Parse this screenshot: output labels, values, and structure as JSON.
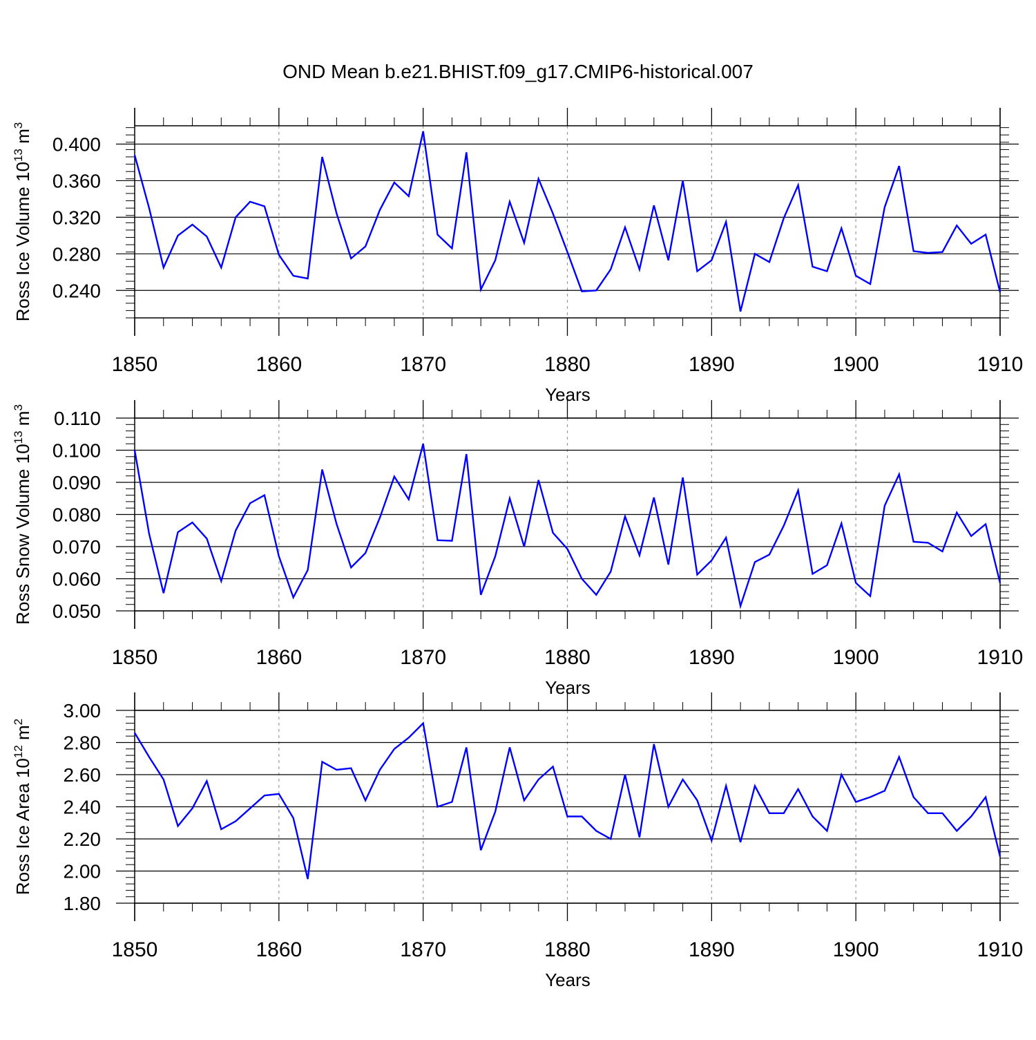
{
  "figure": {
    "title": "OND Mean b.e21.BHIST.f09_g17.CMIP6-historical.007"
  },
  "chart_data": [
    {
      "type": "line",
      "ylabel": "Ross Ice Volume 10",
      "ylabel_exp": "13",
      "ylabel_unit": "m",
      "ylabel_unit_exp": "3",
      "xlabel": "Years",
      "xlim": [
        1850,
        1910
      ],
      "ylim": [
        0.21,
        0.42
      ],
      "yticks": [
        0.24,
        0.28,
        0.32,
        0.36,
        0.4
      ],
      "ytick_labels": [
        "0.240",
        "0.280",
        "0.320",
        "0.360",
        "0.400"
      ],
      "xticks": [
        1850,
        1860,
        1870,
        1880,
        1890,
        1900,
        1910
      ],
      "xtick_labels": [
        "1850",
        "1860",
        "1870",
        "1880",
        "1890",
        "1900",
        "1910"
      ],
      "grid_x": [
        1860,
        1870,
        1880,
        1890,
        1900
      ],
      "color": "#0000ff",
      "x": [
        1850,
        1851,
        1852,
        1853,
        1854,
        1855,
        1856,
        1857,
        1858,
        1859,
        1860,
        1861,
        1862,
        1863,
        1864,
        1865,
        1866,
        1867,
        1868,
        1869,
        1870,
        1871,
        1872,
        1873,
        1874,
        1875,
        1876,
        1877,
        1878,
        1879,
        1880,
        1881,
        1882,
        1883,
        1884,
        1885,
        1886,
        1887,
        1888,
        1889,
        1890,
        1891,
        1892,
        1893,
        1894,
        1895,
        1896,
        1897,
        1898,
        1899,
        1900,
        1901,
        1902,
        1903,
        1904,
        1905,
        1906,
        1907,
        1908,
        1909,
        1910
      ],
      "values": [
        0.388,
        0.33,
        0.265,
        0.3,
        0.312,
        0.299,
        0.265,
        0.32,
        0.337,
        0.332,
        0.279,
        0.256,
        0.253,
        0.386,
        0.324,
        0.275,
        0.288,
        0.328,
        0.358,
        0.343,
        0.414,
        0.301,
        0.286,
        0.391,
        0.241,
        0.273,
        0.337,
        0.292,
        0.362,
        0.324,
        0.282,
        0.239,
        0.24,
        0.263,
        0.309,
        0.263,
        0.333,
        0.273,
        0.36,
        0.261,
        0.273,
        0.315,
        0.217,
        0.28,
        0.271,
        0.319,
        0.355,
        0.266,
        0.261,
        0.308,
        0.256,
        0.247,
        0.331,
        0.376,
        0.283,
        0.281,
        0.282,
        0.311,
        0.291,
        0.301,
        0.238
      ]
    },
    {
      "type": "line",
      "ylabel": "Ross Snow Volume 10",
      "ylabel_exp": "13",
      "ylabel_unit": "m",
      "ylabel_unit_exp": "3",
      "xlabel": "Years",
      "xlim": [
        1850,
        1910
      ],
      "ylim": [
        0.05,
        0.11
      ],
      "yticks": [
        0.05,
        0.06,
        0.07,
        0.08,
        0.09,
        0.1,
        0.11
      ],
      "ytick_labels": [
        "0.050",
        "0.060",
        "0.070",
        "0.080",
        "0.090",
        "0.100",
        "0.110"
      ],
      "xticks": [
        1850,
        1860,
        1870,
        1880,
        1890,
        1900,
        1910
      ],
      "xtick_labels": [
        "1850",
        "1860",
        "1870",
        "1880",
        "1890",
        "1900",
        "1910"
      ],
      "grid_x": [
        1860,
        1870,
        1880,
        1890,
        1900
      ],
      "color": "#0000ff",
      "x": [
        1850,
        1851,
        1852,
        1853,
        1854,
        1855,
        1856,
        1857,
        1858,
        1859,
        1860,
        1861,
        1862,
        1863,
        1864,
        1865,
        1866,
        1867,
        1868,
        1869,
        1870,
        1871,
        1872,
        1873,
        1874,
        1875,
        1876,
        1877,
        1878,
        1879,
        1880,
        1881,
        1882,
        1883,
        1884,
        1885,
        1886,
        1887,
        1888,
        1889,
        1890,
        1891,
        1892,
        1893,
        1894,
        1895,
        1896,
        1897,
        1898,
        1899,
        1900,
        1901,
        1902,
        1903,
        1904,
        1905,
        1906,
        1907,
        1908,
        1909,
        1910
      ],
      "values": [
        0.1,
        0.074,
        0.0555,
        0.0745,
        0.0775,
        0.0725,
        0.0593,
        0.075,
        0.0835,
        0.086,
        0.067,
        0.0542,
        0.0627,
        0.094,
        0.077,
        0.0635,
        0.068,
        0.079,
        0.0918,
        0.0847,
        0.102,
        0.072,
        0.0718,
        0.0988,
        0.055,
        0.067,
        0.085,
        0.07,
        0.0907,
        0.0743,
        0.0693,
        0.06,
        0.055,
        0.0622,
        0.0794,
        0.0673,
        0.0853,
        0.0644,
        0.0915,
        0.0613,
        0.0657,
        0.0728,
        0.0515,
        0.0652,
        0.0675,
        0.0765,
        0.0875,
        0.0615,
        0.0642,
        0.0772,
        0.0587,
        0.0546,
        0.0827,
        0.0925,
        0.0715,
        0.0712,
        0.0685,
        0.0806,
        0.0733,
        0.077,
        0.0587
      ]
    },
    {
      "type": "line",
      "ylabel": "Ross Ice Area 10",
      "ylabel_exp": "12",
      "ylabel_unit": "m",
      "ylabel_unit_exp": "2",
      "xlabel": "Years",
      "xlim": [
        1850,
        1910
      ],
      "ylim": [
        1.8,
        3.0
      ],
      "yticks": [
        1.8,
        2.0,
        2.2,
        2.4,
        2.6,
        2.8,
        3.0
      ],
      "ytick_labels": [
        "1.80",
        "2.00",
        "2.20",
        "2.40",
        "2.60",
        "2.80",
        "3.00"
      ],
      "xticks": [
        1850,
        1860,
        1870,
        1880,
        1890,
        1900,
        1910
      ],
      "xtick_labels": [
        "1850",
        "1860",
        "1870",
        "1880",
        "1890",
        "1900",
        "1910"
      ],
      "grid_x": [
        1860,
        1870,
        1880,
        1890,
        1900
      ],
      "color": "#0000ff",
      "x": [
        1850,
        1851,
        1852,
        1853,
        1854,
        1855,
        1856,
        1857,
        1858,
        1859,
        1860,
        1861,
        1862,
        1863,
        1864,
        1865,
        1866,
        1867,
        1868,
        1869,
        1870,
        1871,
        1872,
        1873,
        1874,
        1875,
        1876,
        1877,
        1878,
        1879,
        1880,
        1881,
        1882,
        1883,
        1884,
        1885,
        1886,
        1887,
        1888,
        1889,
        1890,
        1891,
        1892,
        1893,
        1894,
        1895,
        1896,
        1897,
        1898,
        1899,
        1900,
        1901,
        1902,
        1903,
        1904,
        1905,
        1906,
        1907,
        1908,
        1909,
        1910
      ],
      "values": [
        2.86,
        2.71,
        2.57,
        2.28,
        2.39,
        2.56,
        2.26,
        2.31,
        2.39,
        2.47,
        2.48,
        2.33,
        1.95,
        2.68,
        2.63,
        2.64,
        2.44,
        2.63,
        2.76,
        2.83,
        2.92,
        2.4,
        2.43,
        2.77,
        2.13,
        2.37,
        2.77,
        2.44,
        2.57,
        2.65,
        2.34,
        2.34,
        2.25,
        2.2,
        2.6,
        2.21,
        2.79,
        2.4,
        2.57,
        2.44,
        2.19,
        2.53,
        2.18,
        2.53,
        2.36,
        2.36,
        2.51,
        2.34,
        2.25,
        2.6,
        2.43,
        2.46,
        2.5,
        2.71,
        2.46,
        2.36,
        2.36,
        2.25,
        2.34,
        2.46,
        2.09
      ]
    }
  ]
}
